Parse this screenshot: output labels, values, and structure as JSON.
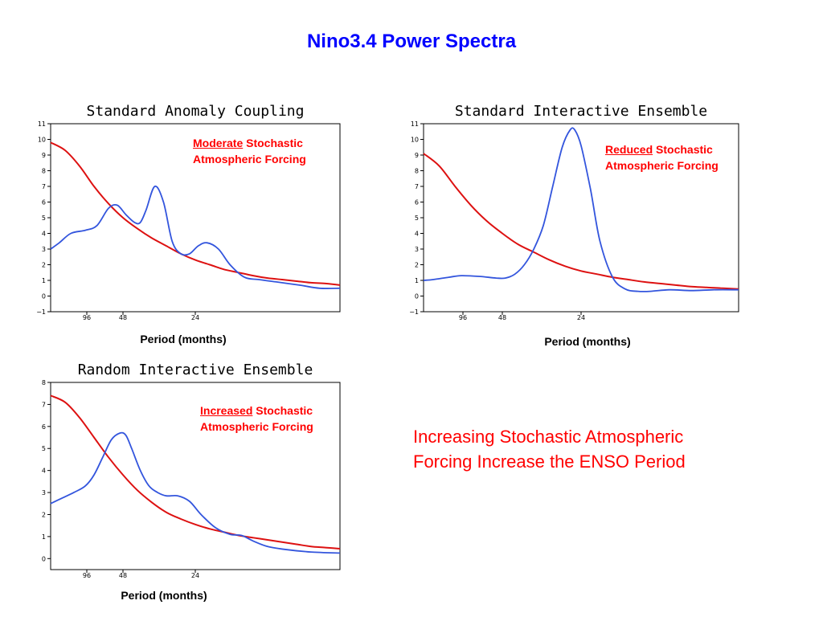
{
  "title": "Nino3.4 Power Spectra",
  "colors": {
    "title": "#0000ff",
    "spectrum": "#3355dd",
    "red_noise": "#dd1111",
    "annotation": "#ff0000"
  },
  "conclusion": {
    "line1": "Increasing Stochastic Atmospheric",
    "line2": "Forcing Increase the ENSO Period"
  },
  "chart_data": [
    {
      "type": "line",
      "title": "Standard Anomaly Coupling",
      "xlabel": "Period (months)",
      "annotation": {
        "keyword": "Moderate",
        "rest1": " Stochastic",
        "line2": "Atmospheric Forcing"
      },
      "ylim": [
        -1,
        11
      ],
      "yticks": [
        -1,
        0,
        1,
        2,
        3,
        4,
        5,
        6,
        7,
        8,
        9,
        10,
        11
      ],
      "xlim": [
        0,
        1
      ],
      "xticks": [
        {
          "label": "96",
          "pos": 0.125
        },
        {
          "label": "48",
          "pos": 0.25
        },
        {
          "label": "24",
          "pos": 0.5
        }
      ],
      "series": [
        {
          "role": "spectrum",
          "x": [
            0,
            0.03,
            0.07,
            0.12,
            0.16,
            0.2,
            0.23,
            0.26,
            0.29,
            0.31,
            0.33,
            0.36,
            0.39,
            0.42,
            0.45,
            0.48,
            0.51,
            0.54,
            0.58,
            0.62,
            0.67,
            0.72,
            0.78,
            0.86,
            0.93,
            1
          ],
          "y": [
            3.0,
            3.4,
            4.0,
            4.2,
            4.5,
            5.6,
            5.8,
            5.2,
            4.7,
            4.7,
            5.5,
            7.0,
            6.0,
            3.5,
            2.7,
            2.7,
            3.2,
            3.4,
            3.0,
            2.0,
            1.2,
            1.05,
            0.9,
            0.7,
            0.5,
            0.5
          ]
        },
        {
          "role": "red noise",
          "x": [
            0,
            0.05,
            0.1,
            0.15,
            0.2,
            0.25,
            0.3,
            0.35,
            0.4,
            0.45,
            0.5,
            0.55,
            0.6,
            0.65,
            0.7,
            0.75,
            0.8,
            0.85,
            0.9,
            0.95,
            1
          ],
          "y": [
            9.8,
            9.3,
            8.3,
            7.0,
            5.9,
            5.0,
            4.3,
            3.7,
            3.2,
            2.7,
            2.3,
            2.0,
            1.7,
            1.5,
            1.3,
            1.15,
            1.05,
            0.95,
            0.85,
            0.8,
            0.7
          ]
        }
      ]
    },
    {
      "type": "line",
      "title": "Standard Interactive Ensemble",
      "xlabel": "Period (months)",
      "annotation": {
        "keyword": "Reduced",
        "rest1": " Stochastic",
        "line2": "Atmospheric Forcing"
      },
      "ylim": [
        -1,
        11
      ],
      "yticks": [
        -1,
        0,
        1,
        2,
        3,
        4,
        5,
        6,
        7,
        8,
        9,
        10,
        11
      ],
      "xlim": [
        0,
        1
      ],
      "xticks": [
        {
          "label": "96",
          "pos": 0.125
        },
        {
          "label": "48",
          "pos": 0.25
        },
        {
          "label": "24",
          "pos": 0.5
        }
      ],
      "series": [
        {
          "role": "spectrum",
          "x": [
            0,
            0.03,
            0.08,
            0.12,
            0.18,
            0.23,
            0.26,
            0.29,
            0.32,
            0.35,
            0.38,
            0.41,
            0.44,
            0.465,
            0.48,
            0.5,
            0.53,
            0.56,
            0.6,
            0.64,
            0.68,
            0.72,
            0.78,
            0.85,
            0.92,
            1
          ],
          "y": [
            1.0,
            1.05,
            1.2,
            1.3,
            1.25,
            1.15,
            1.15,
            1.4,
            2.0,
            3.0,
            4.5,
            7.0,
            9.5,
            10.6,
            10.6,
            9.6,
            6.8,
            3.5,
            1.2,
            0.45,
            0.3,
            0.3,
            0.4,
            0.35,
            0.4,
            0.4
          ]
        },
        {
          "role": "red noise",
          "x": [
            0,
            0.05,
            0.1,
            0.15,
            0.2,
            0.25,
            0.3,
            0.35,
            0.4,
            0.45,
            0.5,
            0.55,
            0.6,
            0.65,
            0.7,
            0.75,
            0.8,
            0.85,
            0.9,
            0.95,
            1
          ],
          "y": [
            9.1,
            8.3,
            7.0,
            5.8,
            4.8,
            4.0,
            3.3,
            2.8,
            2.3,
            1.9,
            1.6,
            1.4,
            1.2,
            1.05,
            0.9,
            0.8,
            0.7,
            0.6,
            0.55,
            0.5,
            0.45
          ]
        }
      ]
    },
    {
      "type": "line",
      "title": "Random Interactive Ensemble",
      "xlabel": "Period (months)",
      "annotation": {
        "keyword": "Increased",
        "rest1": " Stochastic",
        "line2": "Atmospheric Forcing"
      },
      "ylim": [
        -0.5,
        8
      ],
      "yticks": [
        0,
        1,
        2,
        3,
        4,
        5,
        6,
        7,
        8
      ],
      "xlim": [
        0,
        1
      ],
      "xticks": [
        {
          "label": "96",
          "pos": 0.125
        },
        {
          "label": "48",
          "pos": 0.25
        },
        {
          "label": "24",
          "pos": 0.5
        }
      ],
      "series": [
        {
          "role": "spectrum",
          "x": [
            0,
            0.04,
            0.08,
            0.12,
            0.15,
            0.18,
            0.21,
            0.24,
            0.26,
            0.28,
            0.31,
            0.34,
            0.37,
            0.4,
            0.44,
            0.48,
            0.52,
            0.57,
            0.62,
            0.66,
            0.7,
            0.75,
            0.82,
            0.9,
            1
          ],
          "y": [
            2.5,
            2.75,
            3.0,
            3.3,
            3.8,
            4.6,
            5.4,
            5.7,
            5.6,
            5.0,
            4.0,
            3.3,
            3.0,
            2.85,
            2.85,
            2.6,
            2.0,
            1.4,
            1.1,
            1.05,
            0.8,
            0.55,
            0.4,
            0.3,
            0.25
          ]
        },
        {
          "role": "red noise",
          "x": [
            0,
            0.05,
            0.1,
            0.15,
            0.2,
            0.25,
            0.3,
            0.35,
            0.4,
            0.45,
            0.5,
            0.55,
            0.6,
            0.65,
            0.7,
            0.75,
            0.8,
            0.85,
            0.9,
            0.95,
            1
          ],
          "y": [
            7.4,
            7.1,
            6.4,
            5.5,
            4.6,
            3.8,
            3.1,
            2.55,
            2.1,
            1.8,
            1.55,
            1.35,
            1.2,
            1.05,
            0.95,
            0.85,
            0.75,
            0.65,
            0.55,
            0.5,
            0.45
          ]
        }
      ]
    }
  ]
}
